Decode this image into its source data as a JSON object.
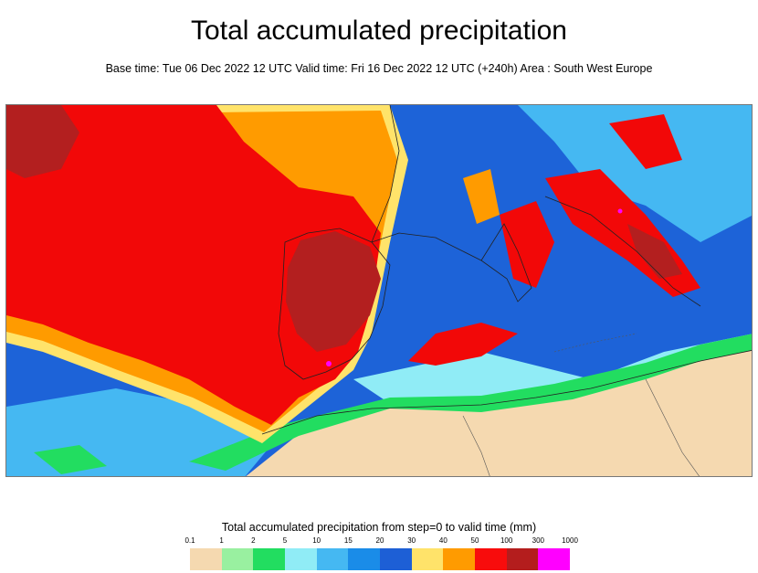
{
  "header": {
    "title": "Total accumulated precipitation",
    "subtitle": "Base time: Tue 06 Dec 2022 12 UTC Valid time: Fri 16 Dec 2022 12 UTC (+240h) Area : South West Europe"
  },
  "legend": {
    "title": "Total accumulated precipitation from step=0 to valid time (mm)",
    "ticks": [
      "0.1",
      "1",
      "2",
      "5",
      "10",
      "15",
      "20",
      "30",
      "40",
      "50",
      "100",
      "300",
      "1000"
    ],
    "colors": [
      "#f5d9b0",
      "#99f0a0",
      "#22dd60",
      "#90ecf6",
      "#45b8f2",
      "#1a8ce8",
      "#1d5fd6",
      "#ffe36a",
      "#ff9b00",
      "#f80c0c",
      "#b41d1d",
      "#ff00ff"
    ]
  },
  "map": {
    "area": "South West Europe",
    "region_colors": {
      "ocean_background": "#1d63d8",
      "atlantic_heavy": "#f20808",
      "iberia_core": "#b31f1f",
      "north_africa_dry": "#f5d9b0",
      "mediterranean_light": "#90ecf6",
      "moderate_band": "#ffe36a",
      "orange_band": "#ff9b00",
      "green_light": "#22dd60"
    }
  }
}
